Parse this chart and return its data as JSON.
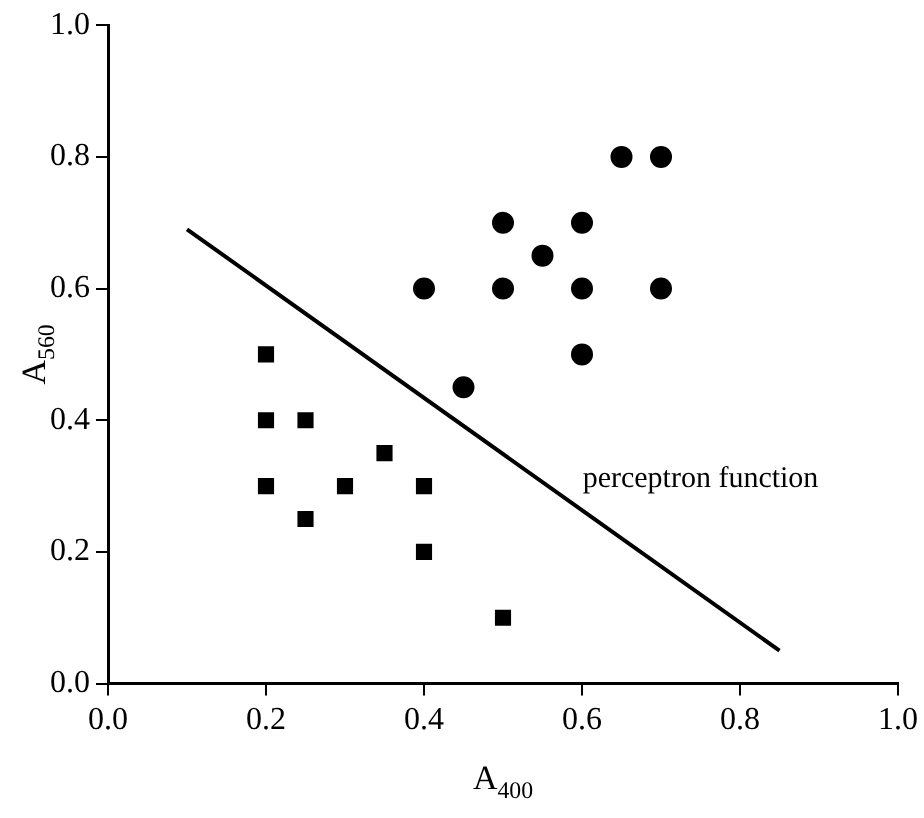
{
  "chart_data": {
    "type": "scatter",
    "xlabel": "A$_{400}$",
    "ylabel": "A$_{560}$",
    "xlim": [
      0,
      1
    ],
    "ylim": [
      0,
      1
    ],
    "xticks": [
      {
        "value": 0,
        "label": "0.0"
      },
      {
        "value": 0.2,
        "label": "0.2"
      },
      {
        "value": 0.4,
        "label": "0.4"
      },
      {
        "value": 0.6,
        "label": "0.6"
      },
      {
        "value": 0.8,
        "label": "0.8"
      },
      {
        "value": 1,
        "label": "1.0"
      }
    ],
    "yticks": [
      {
        "value": 0,
        "label": "0.0"
      },
      {
        "value": 0.2,
        "label": "0.2"
      },
      {
        "value": 0.4,
        "label": "0.4"
      },
      {
        "value": 0.6,
        "label": "0.6"
      },
      {
        "value": 0.8,
        "label": "0.8"
      },
      {
        "value": 1,
        "label": "1.0"
      }
    ],
    "grid": false,
    "legend": false,
    "series": [
      {
        "marker": "circle",
        "color": "#000000",
        "x": [
          0.4,
          0.45,
          0.5,
          0.5,
          0.55,
          0.6,
          0.6,
          0.6,
          0.65,
          0.7,
          0.7
        ],
        "values": [
          0.6,
          0.45,
          0.7,
          0.6,
          0.65,
          0.7,
          0.6,
          0.5,
          0.8,
          0.8,
          0.6
        ]
      },
      {
        "marker": "square",
        "color": "#000000",
        "x": [
          0.2,
          0.2,
          0.2,
          0.25,
          0.25,
          0.3,
          0.35,
          0.4,
          0.4,
          0.5
        ],
        "values": [
          0.5,
          0.4,
          0.3,
          0.4,
          0.25,
          0.3,
          0.35,
          0.3,
          0.2,
          0.1
        ]
      },
      {
        "type": "line",
        "marker": "none",
        "line_style": "solid",
        "color": "#000000",
        "x": [
          0.1,
          0.85
        ],
        "values": [
          0.69,
          0.05
        ]
      }
    ],
    "annotations": [
      "perceptron function"
    ]
  }
}
